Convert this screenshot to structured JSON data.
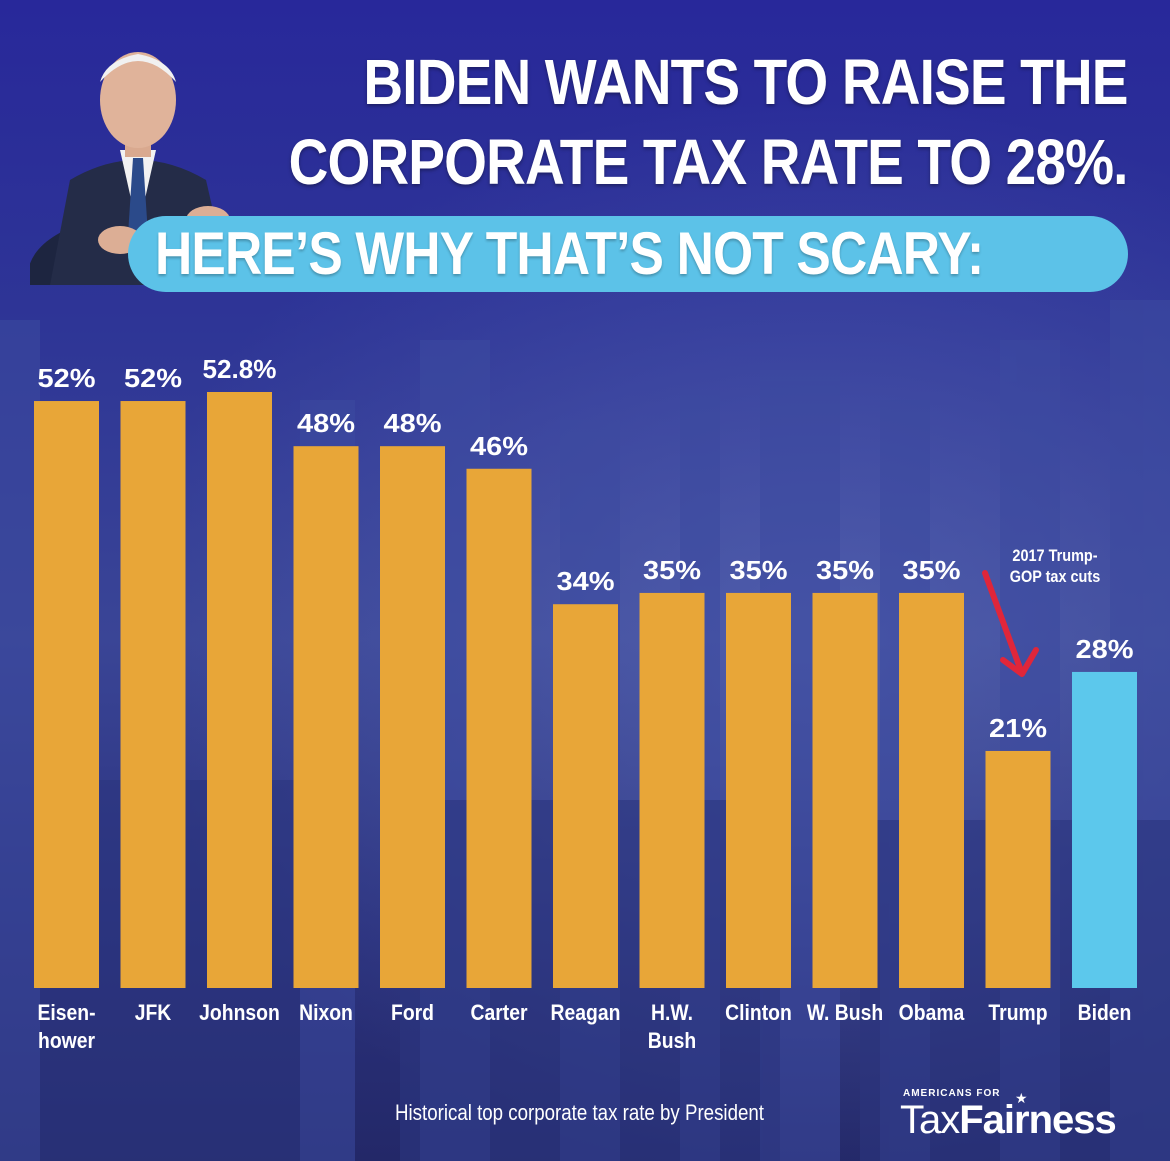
{
  "header": {
    "line1": "BIDEN WANTS TO RAISE THE",
    "line2": "CORPORATE TAX RATE TO 28%.",
    "subhead": "HERE’S WHY THAT’S NOT SCARY:"
  },
  "annotation": {
    "line1": "2017 Trump-",
    "line2": "GOP tax cuts"
  },
  "footer": {
    "caption": "Historical top corporate tax rate by President",
    "brand_small": "AMERICANS FOR",
    "brand_tax": "Tax",
    "brand_fairness": "Fairness"
  },
  "colors": {
    "bar": "#e8a638",
    "highlight_bar": "#5cc8ec",
    "arrow": "#e0263a",
    "pill": "#5cc2e8"
  },
  "chart_data": {
    "type": "bar",
    "categories": [
      [
        "Eisen-",
        "hower"
      ],
      [
        "JFK"
      ],
      [
        "Johnson"
      ],
      [
        "Nixon"
      ],
      [
        "Ford"
      ],
      [
        "Carter"
      ],
      [
        "Reagan"
      ],
      [
        "H.W.",
        "Bush"
      ],
      [
        "Clinton"
      ],
      [
        "W. Bush"
      ],
      [
        "Obama"
      ],
      [
        "Trump"
      ],
      [
        "Biden"
      ]
    ],
    "values": [
      52,
      52,
      52.8,
      48,
      48,
      46,
      34,
      35,
      35,
      35,
      35,
      21,
      28
    ],
    "data_labels": [
      "52%",
      "52%",
      "52.8%",
      "48%",
      "48%",
      "46%",
      "34%",
      "35%",
      "35%",
      "35%",
      "35%",
      "21%",
      "28%"
    ],
    "highlight_index": 12,
    "ylim": [
      0,
      52.8
    ],
    "grid": false
  }
}
